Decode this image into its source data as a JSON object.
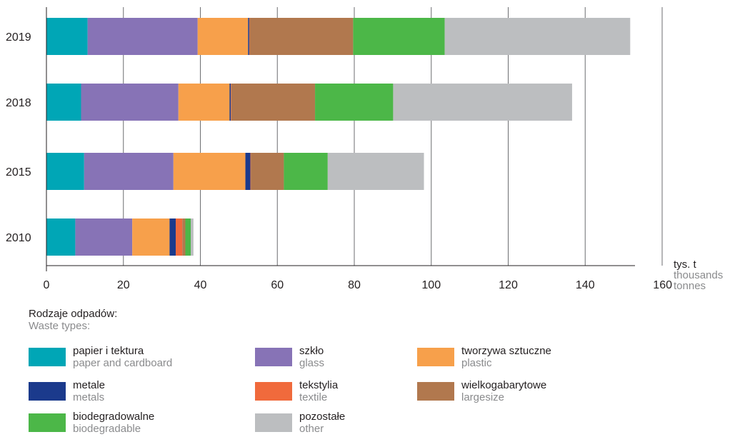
{
  "chart_data": {
    "type": "bar",
    "orientation": "horizontal",
    "stacked": true,
    "categories": [
      "2019",
      "2018",
      "2015",
      "2010"
    ],
    "series": [
      {
        "name": "papier i tektura",
        "name_en": "paper and cardboard",
        "color": "#00a6b6",
        "values": [
          10.7,
          9.0,
          9.8,
          7.5
        ]
      },
      {
        "name": "szkło",
        "name_en": "glass",
        "color": "#8773b6",
        "values": [
          28.6,
          25.3,
          23.2,
          14.8
        ]
      },
      {
        "name": "tworzywa sztuczne",
        "name_en": "plastic",
        "color": "#f7a04b",
        "values": [
          13.1,
          13.3,
          18.7,
          9.7
        ]
      },
      {
        "name": "metale",
        "name_en": "metals",
        "color": "#1b3a8c",
        "values": [
          0.3,
          0.3,
          1.3,
          1.6
        ]
      },
      {
        "name": "tekstylia",
        "name_en": "textile",
        "color": "#f06a3c",
        "values": [
          0.1,
          0.1,
          0.1,
          1.7
        ]
      },
      {
        "name": "wielkogabarytowe",
        "name_en": "largesize",
        "color": "#b1784e",
        "values": [
          26.9,
          21.8,
          8.6,
          0.8
        ]
      },
      {
        "name": "biodegradowalne",
        "name_en": "biodegradable",
        "color": "#4cb748",
        "values": [
          23.8,
          20.3,
          11.4,
          1.4
        ]
      },
      {
        "name": "pozostałe",
        "name_en": "other",
        "color": "#bcbec0",
        "values": [
          48.2,
          46.5,
          25.0,
          0.7
        ]
      }
    ],
    "xlim": [
      0,
      160
    ],
    "xticks": [
      "0",
      "20",
      "40",
      "60",
      "80",
      "100",
      "120",
      "140",
      "160"
    ],
    "unit": {
      "pl": "tys. t",
      "en_line1": "thousands",
      "en_line2": "tonnes"
    },
    "grid": true
  },
  "legend": {
    "title_pl": "Rodzaje odpadów:",
    "title_en": "Waste types:"
  }
}
